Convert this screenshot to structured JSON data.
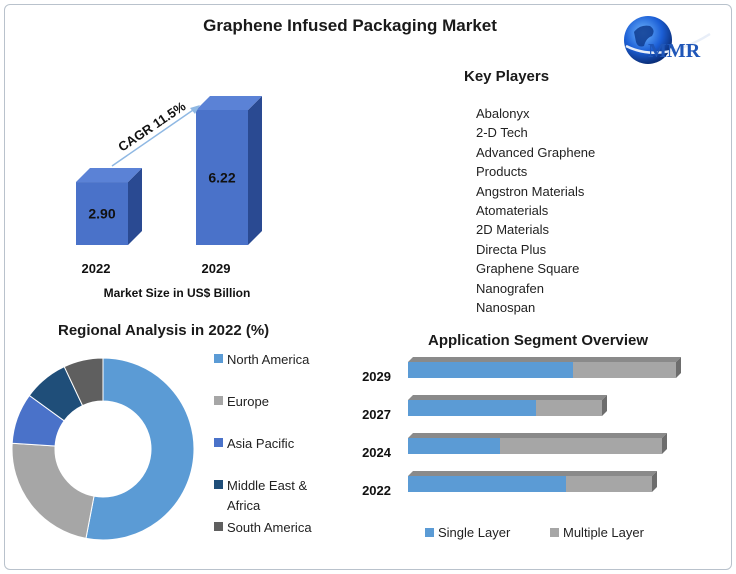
{
  "title": "Graphene Infused Packaging Market",
  "logo": {
    "text": "MMR",
    "icon": "globe-icon"
  },
  "colors": {
    "blue": "#4a72c9",
    "blue_dark": "#3757a6",
    "light_blue": "#5b9bd5",
    "gray": "#a6a6a6",
    "navy": "#1f4e79",
    "dark_gray": "#5f5f5f",
    "arrow": "#8fb8e3"
  },
  "chart_data": [
    {
      "type": "bar",
      "title": "",
      "categories": [
        "2022",
        "2029"
      ],
      "values": [
        2.9,
        6.22
      ],
      "value_labels": [
        "2.90",
        "6.22"
      ],
      "xlabel": "Market Size in US$ Billion",
      "ylabel": "",
      "annotation": "CAGR 11.5%",
      "ylim": [
        0,
        6.5
      ]
    },
    {
      "type": "pie",
      "title": "Regional Analysis in 2022 (%)",
      "style": "donut",
      "labels": [
        "North America",
        "Europe",
        "Asia Pacific",
        "Middle East & Africa",
        "South America"
      ],
      "values": [
        53,
        23,
        9,
        8,
        7
      ],
      "legend_lines": [
        [
          "North America"
        ],
        [
          "Europe"
        ],
        [
          "Asia Pacific"
        ],
        [
          "Middle East &",
          "Africa"
        ],
        [
          "South America"
        ]
      ],
      "legend": "right"
    },
    {
      "type": "bar",
      "orientation": "horizontal",
      "stacked": true,
      "title": "Application Segment Overview",
      "categories": [
        "2029",
        "2027",
        "2024",
        "2022"
      ],
      "series": [
        {
          "name": "Single Layer",
          "values": [
            165,
            128,
            92,
            158
          ]
        },
        {
          "name": "Multiple Layer",
          "values": [
            103,
            66,
            162,
            86
          ]
        }
      ],
      "legend": "bottom"
    }
  ],
  "key_players": {
    "title": "Key Players",
    "items": [
      "Abalonyx",
      "2-D Tech",
      "Advanced Graphene",
      "Products",
      "Angstron Materials",
      "Atomaterials",
      "2D Materials",
      "Directa Plus",
      "Graphene Square",
      "Nanografen",
      "Nanospan"
    ]
  }
}
